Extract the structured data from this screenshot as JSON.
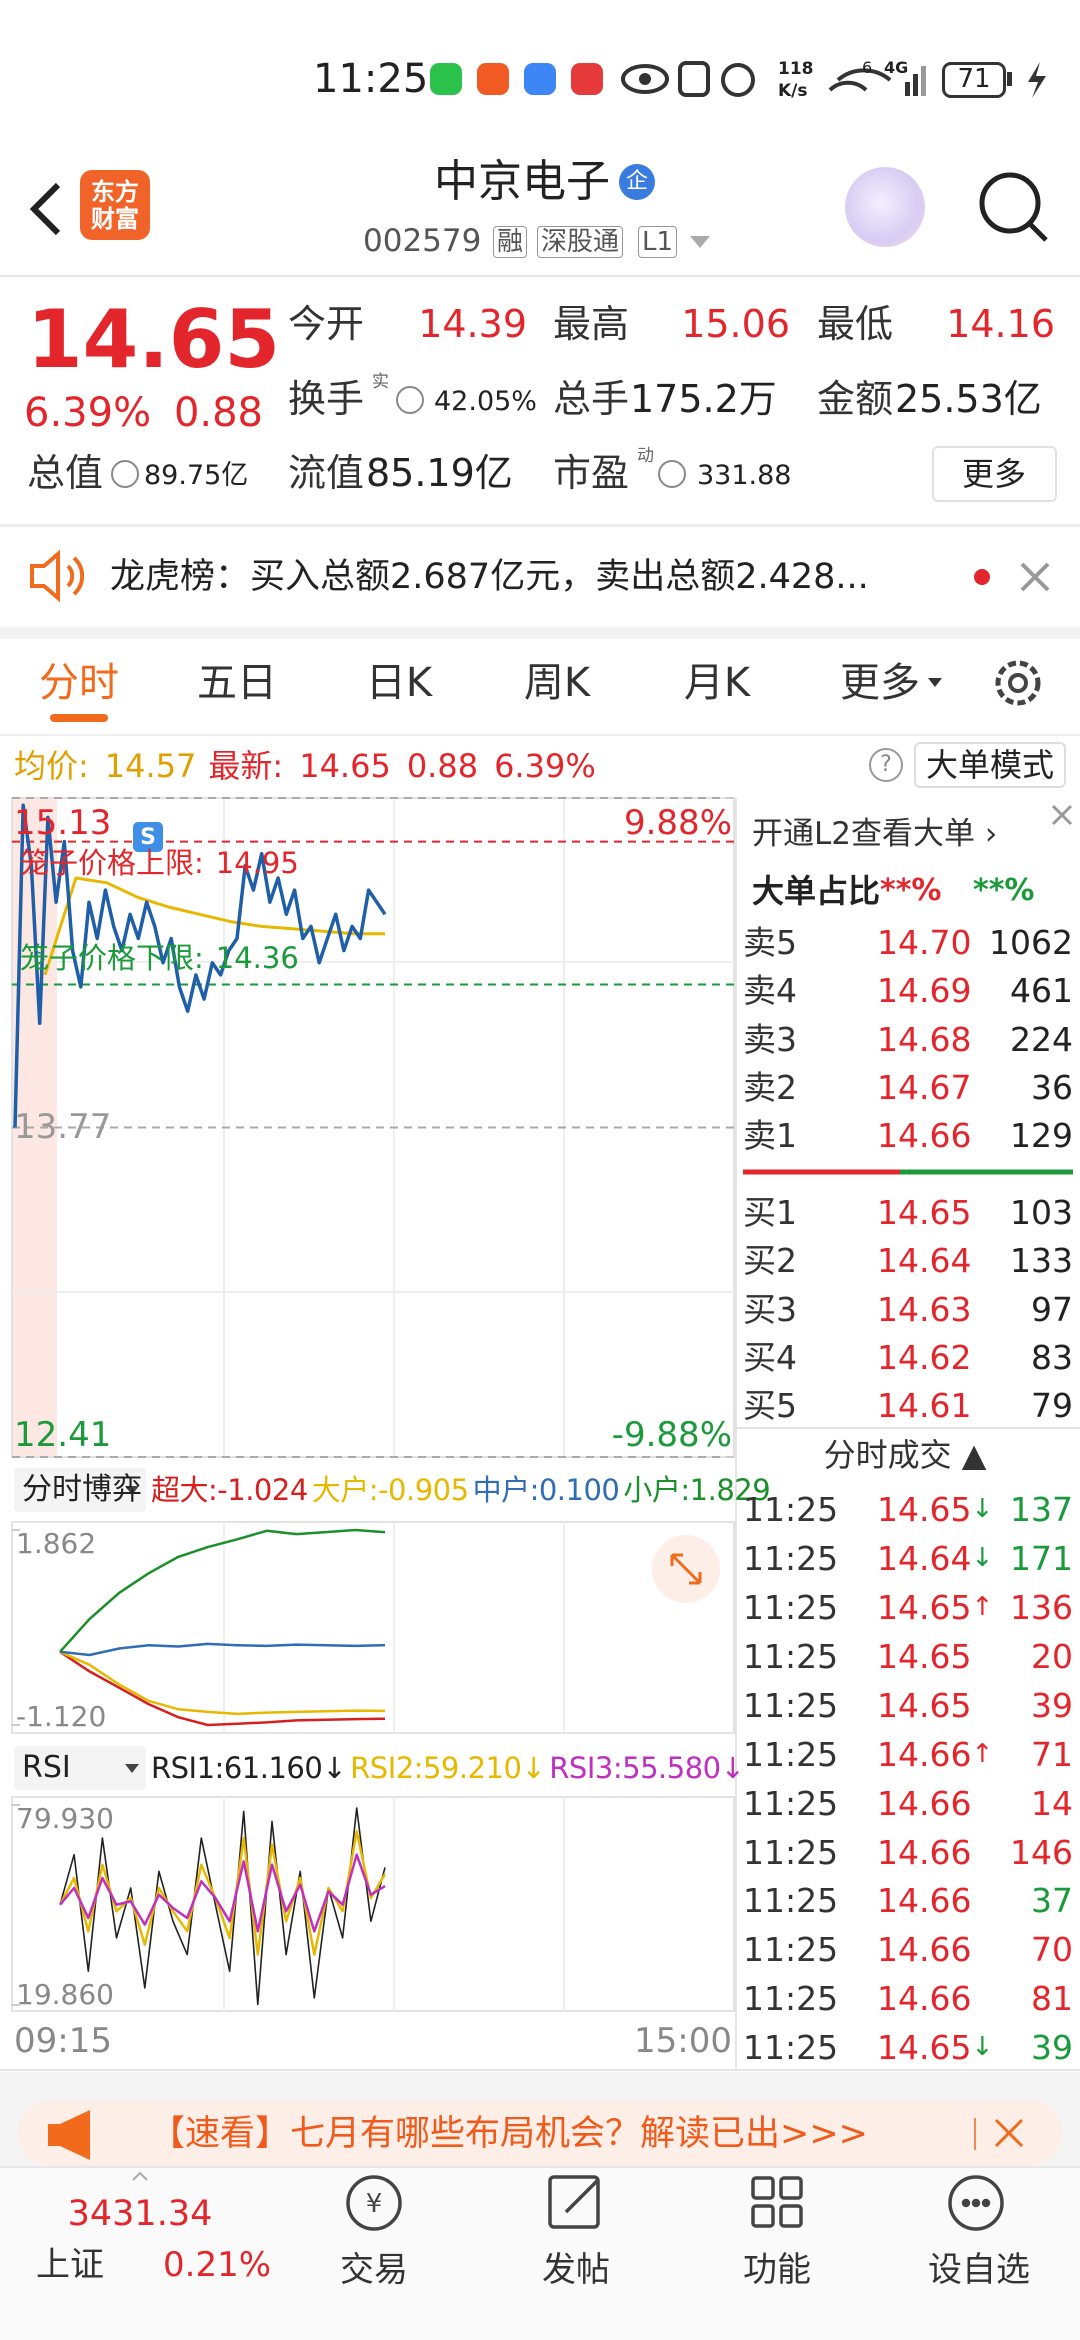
{
  "status_bar": {
    "time": "11:25",
    "speed": "118",
    "speed_unit": "K/s",
    "sim": "6",
    "network": "4G",
    "battery": "71"
  },
  "header": {
    "logo": [
      "东方",
      "财富"
    ],
    "title": "中京电子",
    "badge": "企",
    "code": "002579",
    "tags": [
      "融",
      "深股通",
      "L1"
    ]
  },
  "quote": {
    "price": "14.65",
    "change_pct": "6.39%",
    "change": "0.88",
    "stats": [
      [
        {
          "label": "今开",
          "value": "14.39"
        },
        {
          "label": "最高",
          "value": "15.06"
        },
        {
          "label": "最低",
          "value": "14.16"
        }
      ],
      [
        {
          "label": "换手",
          "sup": "实",
          "value": "42.05%"
        },
        {
          "label": "总手",
          "value": "175.2万"
        },
        {
          "label": "金额",
          "value": "25.53亿"
        }
      ],
      [
        {
          "label": "总值",
          "value": "89.75亿"
        },
        {
          "label": "流值",
          "value": "85.19亿"
        },
        {
          "label": "市盈",
          "sup": "动",
          "value": "331.88"
        }
      ]
    ],
    "more": "更多"
  },
  "notice": {
    "text": "龙虎榜：买入总额2.687亿元，卖出总额2.428..."
  },
  "tabs": [
    "分时",
    "五日",
    "日K",
    "周K",
    "月K",
    "更多"
  ],
  "info": {
    "avg_label": "均价:",
    "avg": "14.57",
    "last_label": "最新:",
    "last": "14.65",
    "change": "0.88",
    "change_pct": "6.39%",
    "help": "?",
    "mode": "大单模式"
  },
  "chart_marker": "S",
  "chart_data": [
    {
      "type": "line",
      "ylim": [
        12.41,
        15.13
      ],
      "yticks": [
        15.13,
        13.77,
        12.41
      ],
      "ytick_colors": [
        "#e3262b",
        "#999999",
        "#1a9a3a"
      ],
      "y2lim": [
        -9.88,
        9.88
      ],
      "y2ticks": [
        {
          "value": 9.88,
          "label": "9.88%"
        },
        {
          "value": -9.88,
          "label": "-9.88%"
        }
      ],
      "y2tick_colors": [
        "#e3262b",
        "#1a9a3a"
      ],
      "annotations": [
        {
          "text": "笼子价格上限:",
          "value": 14.95,
          "color": "#e3262b"
        },
        {
          "text": "笼子价格下限:",
          "value": 14.36,
          "color": "#1a9a3a"
        }
      ],
      "series": [
        {
          "color": "#1f5fa8",
          "values": [
            13.77,
            15.1,
            14.85,
            14.2,
            15.05,
            14.7,
            14.95,
            14.5,
            14.35,
            14.7,
            14.55,
            14.75,
            14.6,
            14.5,
            14.65,
            14.55,
            14.7,
            14.6,
            14.45,
            14.55,
            14.35,
            14.25,
            14.4,
            14.3,
            14.45,
            14.4,
            14.5,
            14.55,
            14.85,
            14.75,
            14.9,
            14.7,
            14.8,
            14.65,
            14.75,
            14.55,
            14.6,
            14.45,
            14.55,
            14.65,
            14.5,
            14.6,
            14.55,
            14.75,
            14.7,
            14.65
          ]
        },
        {
          "color": "#e8b800",
          "values": [
            14.4,
            14.8,
            14.78,
            14.72,
            14.68,
            14.65,
            14.62,
            14.6,
            14.59,
            14.58,
            14.57,
            14.57
          ]
        }
      ]
    },
    {
      "type": "line",
      "selector": "分时博弈",
      "ylim": [
        -1.12,
        1.862
      ],
      "yticks": [
        {
          "value": 1.862,
          "label": "1.862"
        },
        {
          "value": -1.12,
          "label": "-1.120"
        }
      ],
      "series": [
        {
          "name": "超大:",
          "latest": "-1.024",
          "color": "#d62020",
          "values": [
            0,
            -0.3,
            -0.55,
            -0.8,
            -1.0,
            -1.12,
            -1.1,
            -1.08,
            -1.05,
            -1.04,
            -1.03,
            -1.024
          ]
        },
        {
          "name": "大户:",
          "latest": "-0.905",
          "color": "#e8b800",
          "values": [
            0,
            -0.2,
            -0.5,
            -0.75,
            -0.88,
            -0.92,
            -0.95,
            -0.93,
            -0.92,
            -0.91,
            -0.9,
            -0.905
          ]
        },
        {
          "name": "中户:",
          "latest": "0.100",
          "color": "#2f6db5",
          "values": [
            0,
            -0.05,
            0.05,
            0.1,
            0.08,
            0.12,
            0.1,
            0.09,
            0.11,
            0.1,
            0.09,
            0.1
          ]
        },
        {
          "name": "小户:",
          "latest": "1.829",
          "color": "#1a8f2a",
          "values": [
            0,
            0.5,
            0.9,
            1.2,
            1.45,
            1.6,
            1.72,
            1.85,
            1.8,
            1.83,
            1.862,
            1.829
          ]
        }
      ]
    },
    {
      "type": "line",
      "selector": "RSI",
      "ylim": [
        19.86,
        79.93
      ],
      "yticks": [
        {
          "value": 79.93,
          "label": "79.930"
        },
        {
          "value": 19.86,
          "label": "19.860"
        }
      ],
      "series": [
        {
          "name": "RSI1:",
          "latest": "61.160",
          "trend": "↓",
          "color": "#222222",
          "values": [
            50,
            65,
            30,
            70,
            40,
            55,
            25,
            60,
            45,
            35,
            70,
            50,
            30,
            78,
            20,
            75,
            35,
            60,
            22,
            55,
            40,
            79,
            45,
            61.16
          ]
        },
        {
          "name": "RSI2:",
          "latest": "59.210",
          "trend": "↓",
          "color": "#e8b800",
          "values": [
            50,
            58,
            42,
            62,
            48,
            52,
            38,
            55,
            48,
            42,
            62,
            52,
            40,
            70,
            35,
            68,
            45,
            58,
            35,
            55,
            48,
            72,
            52,
            59.21
          ]
        },
        {
          "name": "RSI3:",
          "latest": "55.580",
          "trend": "↓",
          "color": "#c030c0",
          "values": [
            50,
            55,
            46,
            58,
            50,
            51,
            44,
            53,
            49,
            46,
            57,
            52,
            45,
            63,
            42,
            62,
            48,
            56,
            42,
            54,
            50,
            65,
            53,
            55.58
          ]
        }
      ]
    }
  ],
  "time_axis": [
    "09:15",
    "15:00"
  ],
  "order_book": {
    "l2": "开通L2查看大单 ›",
    "ratio_label": "大单占比",
    "ratios": [
      "**%",
      "**%"
    ],
    "asks": [
      {
        "label": "卖5",
        "price": "14.70",
        "volume": "1062"
      },
      {
        "label": "卖4",
        "price": "14.69",
        "volume": "461"
      },
      {
        "label": "卖3",
        "price": "14.68",
        "volume": "224"
      },
      {
        "label": "卖2",
        "price": "14.67",
        "volume": "36"
      },
      {
        "label": "卖1",
        "price": "14.66",
        "volume": "129"
      }
    ],
    "bids": [
      {
        "label": "买1",
        "price": "14.65",
        "volume": "103"
      },
      {
        "label": "买2",
        "price": "14.64",
        "volume": "133"
      },
      {
        "label": "买3",
        "price": "14.63",
        "volume": "97"
      },
      {
        "label": "买4",
        "price": "14.62",
        "volume": "83"
      },
      {
        "label": "买5",
        "price": "14.61",
        "volume": "79"
      }
    ]
  },
  "trades": {
    "title": "分时成交 ▲",
    "rows": [
      {
        "time": "11:25",
        "price": "14.65",
        "arrow": "↓",
        "arrow_color": "#1a9a3a",
        "volume": "137",
        "color": "#1a9a3a"
      },
      {
        "time": "11:25",
        "price": "14.64",
        "arrow": "↓",
        "arrow_color": "#1a9a3a",
        "volume": "171",
        "color": "#1a9a3a"
      },
      {
        "time": "11:25",
        "price": "14.65",
        "arrow": "↑",
        "arrow_color": "#e3262b",
        "volume": "136",
        "color": "#e3262b"
      },
      {
        "time": "11:25",
        "price": "14.65",
        "volume": "20",
        "color": "#e3262b"
      },
      {
        "time": "11:25",
        "price": "14.65",
        "volume": "39",
        "color": "#e3262b"
      },
      {
        "time": "11:25",
        "price": "14.66",
        "arrow": "↑",
        "arrow_color": "#e3262b",
        "volume": "71",
        "color": "#e3262b"
      },
      {
        "time": "11:25",
        "price": "14.66",
        "volume": "14",
        "color": "#e3262b"
      },
      {
        "time": "11:25",
        "price": "14.66",
        "volume": "146",
        "color": "#e3262b"
      },
      {
        "time": "11:25",
        "price": "14.66",
        "volume": "37",
        "color": "#1a9a3a"
      },
      {
        "time": "11:25",
        "price": "14.66",
        "volume": "70",
        "color": "#e3262b"
      },
      {
        "time": "11:25",
        "price": "14.66",
        "volume": "81",
        "color": "#e3262b"
      },
      {
        "time": "11:25",
        "price": "14.65",
        "arrow": "↓",
        "arrow_color": "#1a9a3a",
        "volume": "39",
        "color": "#1a9a3a"
      }
    ]
  },
  "banner": "【速看】七月有哪些布局机会？解读已出>>>",
  "nav": {
    "index_value": "3431.34",
    "index_name": "上证",
    "index_change": "0.21%",
    "items": [
      "交易",
      "发帖",
      "功能",
      "设自选"
    ]
  }
}
